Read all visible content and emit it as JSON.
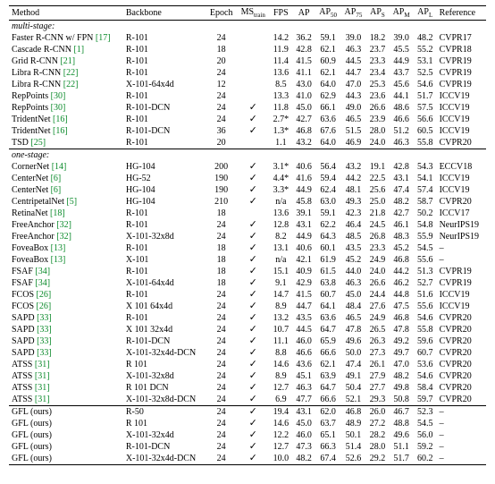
{
  "columns": [
    {
      "key": "method",
      "label": "Method",
      "class": "method"
    },
    {
      "key": "backbone",
      "label": "Backbone",
      "class": "backbone"
    },
    {
      "key": "epoch",
      "label": "Epoch"
    },
    {
      "key": "mstrain",
      "label": "MS",
      "sub": "train"
    },
    {
      "key": "fps",
      "label": "FPS"
    },
    {
      "key": "ap",
      "label": "AP"
    },
    {
      "key": "ap50",
      "label": "AP",
      "sub": "50"
    },
    {
      "key": "ap75",
      "label": "AP",
      "sub": "75"
    },
    {
      "key": "aps",
      "label": "AP",
      "sub": "S"
    },
    {
      "key": "apm",
      "label": "AP",
      "sub": "M"
    },
    {
      "key": "apl",
      "label": "AP",
      "sub": "L"
    },
    {
      "key": "ref",
      "label": "Reference",
      "class": "ref"
    }
  ],
  "checkmark": "✓",
  "sections": [
    {
      "title": "multi-stage:",
      "rows": [
        {
          "method": "Faster R-CNN w/ FPN",
          "cite": "[17]",
          "backbone": "R-101",
          "epoch": "24",
          "mstrain": "",
          "fps": "14.2",
          "ap": "36.2",
          "ap50": "59.1",
          "ap75": "39.0",
          "aps": "18.2",
          "apm": "39.0",
          "apl": "48.2",
          "ref": "CVPR17"
        },
        {
          "method": "Cascade R-CNN",
          "cite": "[1]",
          "backbone": "R-101",
          "epoch": "18",
          "mstrain": "",
          "fps": "11.9",
          "ap": "42.8",
          "ap50": "62.1",
          "ap75": "46.3",
          "aps": "23.7",
          "apm": "45.5",
          "apl": "55.2",
          "ref": "CVPR18"
        },
        {
          "method": "Grid R-CNN",
          "cite": "[21]",
          "backbone": "R-101",
          "epoch": "20",
          "mstrain": "",
          "fps": "11.4",
          "ap": "41.5",
          "ap50": "60.9",
          "ap75": "44.5",
          "aps": "23.3",
          "apm": "44.9",
          "apl": "53.1",
          "ref": "CVPR19"
        },
        {
          "method": "Libra R-CNN",
          "cite": "[22]",
          "backbone": "R-101",
          "epoch": "24",
          "mstrain": "",
          "fps": "13.6",
          "ap": "41.1",
          "ap50": "62.1",
          "ap75": "44.7",
          "aps": "23.4",
          "apm": "43.7",
          "apl": "52.5",
          "ref": "CVPR19"
        },
        {
          "method": "Libra R-CNN",
          "cite": "[22]",
          "backbone": "X-101-64x4d",
          "epoch": "12",
          "mstrain": "",
          "fps": "8.5",
          "ap": "43.0",
          "ap50": "64.0",
          "ap75": "47.0",
          "aps": "25.3",
          "apm": "45.6",
          "apl": "54.6",
          "ref": "CVPR19"
        },
        {
          "method": "RepPoints",
          "cite": "[30]",
          "backbone": "R-101",
          "epoch": "24",
          "mstrain": "",
          "fps": "13.3",
          "ap": "41.0",
          "ap50": "62.9",
          "ap75": "44.3",
          "aps": "23.6",
          "apm": "44.1",
          "apl": "51.7",
          "ref": "ICCV19"
        },
        {
          "method": "RepPoints",
          "cite": "[30]",
          "backbone": "R-101-DCN",
          "epoch": "24",
          "mstrain": true,
          "fps": "11.8",
          "ap": "45.0",
          "ap50": "66.1",
          "ap75": "49.0",
          "aps": "26.6",
          "apm": "48.6",
          "apl": "57.5",
          "ref": "ICCV19"
        },
        {
          "method": "TridentNet",
          "cite": "[16]",
          "backbone": "R-101",
          "epoch": "24",
          "mstrain": true,
          "fps": "2.7*",
          "ap": "42.7",
          "ap50": "63.6",
          "ap75": "46.5",
          "aps": "23.9",
          "apm": "46.6",
          "apl": "56.6",
          "ref": "ICCV19"
        },
        {
          "method": "TridentNet",
          "cite": "[16]",
          "backbone": "R-101-DCN",
          "epoch": "36",
          "mstrain": true,
          "fps": "1.3*",
          "ap": "46.8",
          "ap50": "67.6",
          "ap75": "51.5",
          "aps": "28.0",
          "apm": "51.2",
          "apl": "60.5",
          "ref": "ICCV19"
        },
        {
          "method": "TSD",
          "cite": "[25]",
          "backbone": "R-101",
          "epoch": "20",
          "mstrain": "",
          "fps": "1.1",
          "ap": "43.2",
          "ap50": "64.0",
          "ap75": "46.9",
          "aps": "24.0",
          "apm": "46.3",
          "apl": "55.8",
          "ref": "CVPR20"
        }
      ]
    },
    {
      "title": "one-stage:",
      "rows": [
        {
          "method": "CornerNet",
          "cite": "[14]",
          "backbone": "HG-104",
          "epoch": "200",
          "mstrain": true,
          "fps": "3.1*",
          "ap": "40.6",
          "ap50": "56.4",
          "ap75": "43.2",
          "aps": "19.1",
          "apm": "42.8",
          "apl": "54.3",
          "ref": "ECCV18"
        },
        {
          "method": "CenterNet",
          "cite": "[6]",
          "backbone": "HG-52",
          "epoch": "190",
          "mstrain": true,
          "fps": "4.4*",
          "ap": "41.6",
          "ap50": "59.4",
          "ap75": "44.2",
          "aps": "22.5",
          "apm": "43.1",
          "apl": "54.1",
          "ref": "ICCV19"
        },
        {
          "method": "CenterNet",
          "cite": "[6]",
          "backbone": "HG-104",
          "epoch": "190",
          "mstrain": true,
          "fps": "3.3*",
          "ap": "44.9",
          "ap50": "62.4",
          "ap75": "48.1",
          "aps": "25.6",
          "apm": "47.4",
          "apl": "57.4",
          "ref": "ICCV19"
        },
        {
          "method": "CentripetalNet",
          "cite": "[5]",
          "backbone": "HG-104",
          "epoch": "210",
          "mstrain": true,
          "fps": "n/a",
          "ap": "45.8",
          "ap50": "63.0",
          "ap75": "49.3",
          "aps": "25.0",
          "apm": "48.2",
          "apl": "58.7",
          "ref": "CVPR20"
        },
        {
          "method": "RetinaNet",
          "cite": "[18]",
          "backbone": "R-101",
          "epoch": "18",
          "mstrain": "",
          "fps": "13.6",
          "ap": "39.1",
          "ap50": "59.1",
          "ap75": "42.3",
          "aps": "21.8",
          "apm": "42.7",
          "apl": "50.2",
          "ref": "ICCV17"
        },
        {
          "method": "FreeAnchor",
          "cite": "[32]",
          "backbone": "R-101",
          "epoch": "24",
          "mstrain": true,
          "fps": "12.8",
          "ap": "43.1",
          "ap50": "62.2",
          "ap75": "46.4",
          "aps": "24.5",
          "apm": "46.1",
          "apl": "54.8",
          "ref": "NeurIPS19"
        },
        {
          "method": "FreeAnchor",
          "cite": "[32]",
          "backbone": "X-101-32x8d",
          "epoch": "24",
          "mstrain": true,
          "fps": "8.2",
          "ap": "44.9",
          "ap50": "64.3",
          "ap75": "48.5",
          "aps": "26.8",
          "apm": "48.3",
          "apl": "55.9",
          "ref": "NeurIPS19"
        },
        {
          "method": "FoveaBox",
          "cite": "[13]",
          "backbone": "R-101",
          "epoch": "18",
          "mstrain": true,
          "fps": "13.1",
          "ap": "40.6",
          "ap50": "60.1",
          "ap75": "43.5",
          "aps": "23.3",
          "apm": "45.2",
          "apl": "54.5",
          "ref": "–"
        },
        {
          "method": "FoveaBox",
          "cite": "[13]",
          "backbone": "X-101",
          "epoch": "18",
          "mstrain": true,
          "fps": "n/a",
          "ap": "42.1",
          "ap50": "61.9",
          "ap75": "45.2",
          "aps": "24.9",
          "apm": "46.8",
          "apl": "55.6",
          "ref": "–"
        },
        {
          "method": "FSAF",
          "cite": "[34]",
          "backbone": "R-101",
          "epoch": "18",
          "mstrain": true,
          "fps": "15.1",
          "ap": "40.9",
          "ap50": "61.5",
          "ap75": "44.0",
          "aps": "24.0",
          "apm": "44.2",
          "apl": "51.3",
          "ref": "CVPR19"
        },
        {
          "method": "FSAF",
          "cite": "[34]",
          "backbone": "X-101-64x4d",
          "epoch": "18",
          "mstrain": true,
          "fps": "9.1",
          "ap": "42.9",
          "ap50": "63.8",
          "ap75": "46.3",
          "aps": "26.6",
          "apm": "46.2",
          "apl": "52.7",
          "ref": "CVPR19"
        },
        {
          "method": "FCOS",
          "cite": "[26]",
          "backbone": "R-101",
          "epoch": "24",
          "mstrain": true,
          "fps": "14.7",
          "ap": "41.5",
          "ap50": "60.7",
          "ap75": "45.0",
          "aps": "24.4",
          "apm": "44.8",
          "apl": "51.6",
          "ref": "ICCV19"
        },
        {
          "method": "FCOS",
          "cite": "[26]",
          "backbone": "X 101 64x4d",
          "epoch": "24",
          "mstrain": true,
          "fps": "8.9",
          "ap": "44.7",
          "ap50": "64.1",
          "ap75": "48.4",
          "aps": "27.6",
          "apm": "47.5",
          "apl": "55.6",
          "ref": "ICCV19"
        },
        {
          "method": "SAPD",
          "cite": "[33]",
          "backbone": "R-101",
          "epoch": "24",
          "mstrain": true,
          "fps": "13.2",
          "ap": "43.5",
          "ap50": "63.6",
          "ap75": "46.5",
          "aps": "24.9",
          "apm": "46.8",
          "apl": "54.6",
          "ref": "CVPR20"
        },
        {
          "method": "SAPD",
          "cite": "[33]",
          "backbone": "X 101 32x4d",
          "epoch": "24",
          "mstrain": true,
          "fps": "10.7",
          "ap": "44.5",
          "ap50": "64.7",
          "ap75": "47.8",
          "aps": "26.5",
          "apm": "47.8",
          "apl": "55.8",
          "ref": "CVPR20"
        },
        {
          "method": "SAPD",
          "cite": "[33]",
          "backbone": "R-101-DCN",
          "epoch": "24",
          "mstrain": true,
          "fps": "11.1",
          "ap": "46.0",
          "ap50": "65.9",
          "ap75": "49.6",
          "aps": "26.3",
          "apm": "49.2",
          "apl": "59.6",
          "ref": "CVPR20"
        },
        {
          "method": "SAPD",
          "cite": "[33]",
          "backbone": "X-101-32x4d-DCN",
          "epoch": "24",
          "mstrain": true,
          "fps": "8.8",
          "ap": "46.6",
          "ap50": "66.6",
          "ap75": "50.0",
          "aps": "27.3",
          "apm": "49.7",
          "apl": "60.7",
          "ref": "CVPR20"
        },
        {
          "method": "ATSS",
          "cite": "[31]",
          "backbone": "R 101",
          "epoch": "24",
          "mstrain": true,
          "fps": "14.6",
          "ap": "43.6",
          "ap50": "62.1",
          "ap75": "47.4",
          "aps": "26.1",
          "apm": "47.0",
          "apl": "53.6",
          "ref": "CVPR20"
        },
        {
          "method": "ATSS",
          "cite": "[31]",
          "backbone": "X-101-32x8d",
          "epoch": "24",
          "mstrain": true,
          "fps": "8.9",
          "ap": "45.1",
          "ap50": "63.9",
          "ap75": "49.1",
          "aps": "27.9",
          "apm": "48.2",
          "apl": "54.6",
          "ref": "CVPR20"
        },
        {
          "method": "ATSS",
          "cite": "[31]",
          "backbone": "R 101 DCN",
          "epoch": "24",
          "mstrain": true,
          "fps": "12.7",
          "ap": "46.3",
          "ap50": "64.7",
          "ap75": "50.4",
          "aps": "27.7",
          "apm": "49.8",
          "apl": "58.4",
          "ref": "CVPR20"
        },
        {
          "method": "ATSS",
          "cite": "[31]",
          "backbone": "X-101-32x8d-DCN",
          "epoch": "24",
          "mstrain": true,
          "fps": "6.9",
          "ap": "47.7",
          "ap50": "66.6",
          "ap75": "52.1",
          "aps": "29.3",
          "apm": "50.8",
          "apl": "59.7",
          "ref": "CVPR20"
        }
      ]
    },
    {
      "title": null,
      "rows": [
        {
          "method": "GFL (ours)",
          "cite": "",
          "backbone": "R-50",
          "epoch": "24",
          "mstrain": true,
          "fps": "19.4",
          "ap": "43.1",
          "ap50": "62.0",
          "ap75": "46.8",
          "aps": "26.0",
          "apm": "46.7",
          "apl": "52.3",
          "ref": "–"
        },
        {
          "method": "GFL (ours)",
          "cite": "",
          "backbone": "R 101",
          "epoch": "24",
          "mstrain": true,
          "fps": "14.6",
          "ap": "45.0",
          "ap50": "63.7",
          "ap75": "48.9",
          "aps": "27.2",
          "apm": "48.8",
          "apl": "54.5",
          "ref": "–"
        },
        {
          "method": "GFL (ours)",
          "cite": "",
          "backbone": "X-101-32x4d",
          "epoch": "24",
          "mstrain": true,
          "fps": "12.2",
          "ap": "46.0",
          "ap50": "65.1",
          "ap75": "50.1",
          "aps": "28.2",
          "apm": "49.6",
          "apl": "56.0",
          "ref": "–"
        },
        {
          "method": "GFL (ours)",
          "cite": "",
          "backbone": "R-101-DCN",
          "epoch": "24",
          "mstrain": true,
          "fps": "12.7",
          "ap": "47.3",
          "ap50": "66.3",
          "ap75": "51.4",
          "aps": "28.0",
          "apm": "51.1",
          "apl": "59.2",
          "ref": "–"
        },
        {
          "method": "GFL (ours)",
          "cite": "",
          "backbone": "X-101-32x4d-DCN",
          "epoch": "24",
          "mstrain": true,
          "fps": "10.0",
          "ap": "48.2",
          "ap50": "67.4",
          "ap75": "52.6",
          "aps": "29.2",
          "apm": "51.7",
          "apl": "60.2",
          "ref": "–"
        }
      ]
    }
  ]
}
